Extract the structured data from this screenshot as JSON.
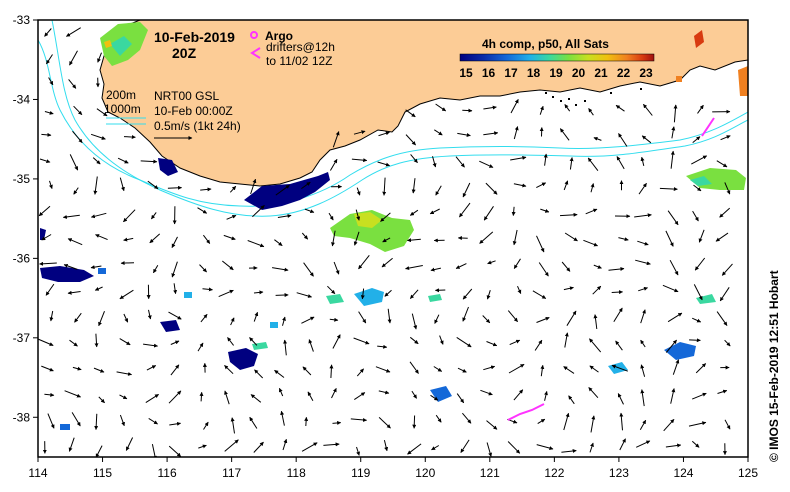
{
  "header": {
    "date": "10-Feb-2019",
    "hour": "20Z"
  },
  "legend": {
    "argo_label": "Argo",
    "drifters_label": "drifters@12h",
    "drifters_until": "to 11/02 12Z",
    "argo_color": "#ff33ff",
    "drifter_color": "#ff33ff"
  },
  "contours": {
    "label_200m": "200m",
    "label_1000m": "1000m",
    "color": "#33ddee"
  },
  "product": {
    "line1": "NRT00 GSL",
    "line2": "10-Feb 00:00Z",
    "scale_label": "0.5m/s (1kt 24h)"
  },
  "colorbar": {
    "title": "4h comp, p50, All Sats",
    "ticks": [
      "15",
      "16",
      "17",
      "18",
      "19",
      "20",
      "21",
      "22",
      "23"
    ],
    "colors": [
      "#000080",
      "#0a2ba8",
      "#1468d8",
      "#22b0e8",
      "#3ad8a0",
      "#7ae040",
      "#c8e020",
      "#f0c010",
      "#f08020",
      "#d83a10",
      "#a01010"
    ]
  },
  "axes": {
    "x_ticks": [
      "114",
      "115",
      "116",
      "117",
      "118",
      "119",
      "120",
      "121",
      "122",
      "123",
      "124",
      "125"
    ],
    "y_ticks": [
      "-33",
      "-34",
      "-35",
      "-36",
      "-37",
      "-38"
    ],
    "xlim": [
      114,
      125
    ],
    "ylim": [
      -38.5,
      -33
    ]
  },
  "colors": {
    "land": "#fccc96",
    "coastline": "#000000"
  },
  "credit": "© IMOS 15-Feb-2019 12:51 Hobart"
}
